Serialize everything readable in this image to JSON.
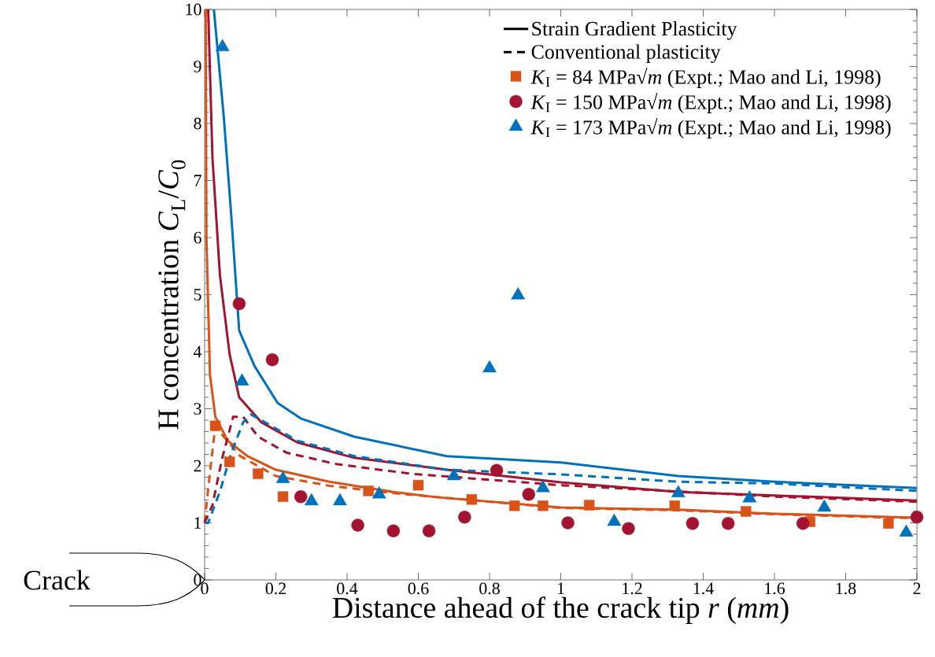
{
  "chart_data": {
    "type": "line",
    "xlabel": "Distance ahead of the crack tip *r* (*mm*)",
    "ylabel": "H concentration *C*$_{L}$/*C*$_{0}$",
    "xlim": [
      0,
      2
    ],
    "ylim": [
      0,
      10
    ],
    "xticks": [
      0,
      0.2,
      0.4,
      0.6,
      0.8,
      1,
      1.2,
      1.4,
      1.6,
      1.8,
      2
    ],
    "yticks": [
      0,
      1,
      2,
      3,
      4,
      5,
      6,
      7,
      8,
      9,
      10
    ],
    "legend": "top right",
    "annotations": [
      "Crack"
    ],
    "series": [
      {
        "name": "Strain Gradient Plasticity",
        "color": "#000000",
        "line_style": "solid"
      },
      {
        "name": "Conventional plasticity",
        "color": "#000000",
        "line_style": "dashed"
      },
      {
        "type": "line",
        "color": "#d95319",
        "line_style": "solid",
        "x": [
          0.003,
          0.005,
          0.015,
          0.03,
          0.065,
          0.12,
          0.2,
          0.35,
          0.53,
          0.65,
          1.0,
          1.33,
          1.6,
          2.0
        ],
        "values": [
          10,
          6.0,
          3.6,
          2.86,
          2.44,
          2.17,
          1.93,
          1.72,
          1.54,
          1.45,
          1.27,
          1.23,
          1.16,
          1.09
        ]
      },
      {
        "type": "line",
        "color": "#a2142f",
        "line_style": "solid",
        "x": [
          0.01,
          0.022,
          0.043,
          0.07,
          0.097,
          0.16,
          0.26,
          0.42,
          0.68,
          1.0,
          1.33,
          1.6,
          2.0
        ],
        "values": [
          10,
          7.4,
          5.34,
          3.96,
          3.2,
          2.76,
          2.41,
          2.14,
          1.93,
          1.71,
          1.54,
          1.48,
          1.39
        ]
      },
      {
        "type": "line",
        "color": "#0072bd",
        "line_style": "solid",
        "x": [
          0.026,
          0.054,
          0.075,
          0.097,
          0.14,
          0.205,
          0.27,
          0.42,
          0.68,
          1.0,
          1.33,
          1.6,
          2.0
        ],
        "values": [
          10,
          8.1,
          6.37,
          4.37,
          3.75,
          3.1,
          2.83,
          2.51,
          2.17,
          2.06,
          1.82,
          1.72,
          1.61
        ]
      },
      {
        "type": "line",
        "color": "#d95319",
        "line_style": "dashed",
        "x": [
          0,
          0.015,
          0.03,
          0.054,
          0.1,
          0.2,
          0.35,
          0.53,
          1.0,
          1.33,
          1.6,
          2.0
        ],
        "values": [
          1.0,
          1.89,
          2.69,
          2.51,
          2.17,
          1.82,
          1.65,
          1.52,
          1.26,
          1.22,
          1.15,
          1.08
        ]
      },
      {
        "type": "line",
        "color": "#a2142f",
        "line_style": "dashed",
        "x": [
          0,
          0.022,
          0.048,
          0.08,
          0.108,
          0.15,
          0.23,
          0.37,
          0.58,
          1.0,
          1.6,
          2.0
        ],
        "values": [
          1.0,
          1.31,
          2.1,
          2.86,
          2.86,
          2.51,
          2.23,
          2.03,
          1.86,
          1.66,
          1.46,
          1.37
        ]
      },
      {
        "type": "line",
        "color": "#0072bd",
        "line_style": "dashed",
        "x": [
          0,
          0.01,
          0.043,
          0.075,
          0.108,
          0.13,
          0.17,
          0.26,
          0.42,
          0.68,
          1.0,
          1.33,
          1.6,
          2.0
        ],
        "values": [
          1.0,
          1.0,
          1.55,
          2.23,
          2.76,
          2.9,
          2.76,
          2.44,
          2.17,
          1.93,
          1.85,
          1.72,
          1.69,
          1.56
        ]
      },
      {
        "name": "*K*$_{I}$ = 84 MPa√*m* (Expt.; Mao and Li, 1998)",
        "type": "scatter",
        "marker": "square",
        "color": "#d95319",
        "x": [
          0.03,
          0.07,
          0.15,
          0.22,
          0.38,
          0.46,
          0.6,
          0.75,
          0.87,
          0.95,
          1.08,
          1.32,
          1.52,
          1.7,
          1.92
        ],
        "values": [
          2.7,
          2.07,
          1.86,
          1.46,
          null,
          1.56,
          1.66,
          1.41,
          1.3,
          1.3,
          1.31,
          1.3,
          1.2,
          1.02,
          0.99
        ]
      },
      {
        "name": "*K*$_{I}$ = 150 MPa√*m* (Expt.; Mao and Li, 1998)",
        "type": "scatter",
        "marker": "circle",
        "color": "#a2142f",
        "x": [
          0.097,
          0.19,
          0.27,
          0.43,
          0.53,
          0.63,
          0.73,
          0.82,
          0.91,
          1.02,
          1.19,
          1.37,
          1.47,
          1.68,
          2.0
        ],
        "values": [
          4.84,
          3.86,
          1.46,
          0.96,
          0.86,
          0.86,
          1.1,
          1.92,
          1.5,
          1.0,
          0.9,
          0.99,
          0.99,
          0.99,
          1.1
        ]
      },
      {
        "name": "*K*$_{I}$ = 173 MPa√*m* (Expt.; Mao and Li, 1998)",
        "type": "scatter",
        "marker": "triangle",
        "color": "#0072bd",
        "x": [
          0.05,
          0.105,
          0.22,
          0.3,
          0.38,
          0.49,
          0.7,
          0.8,
          0.88,
          0.95,
          1.15,
          1.33,
          1.53,
          1.74,
          1.97
        ],
        "values": [
          9.34,
          3.48,
          1.77,
          1.38,
          1.38,
          1.5,
          1.82,
          3.71,
          4.99,
          1.61,
          1.02,
          1.52,
          1.43,
          1.27,
          0.83
        ]
      }
    ]
  }
}
